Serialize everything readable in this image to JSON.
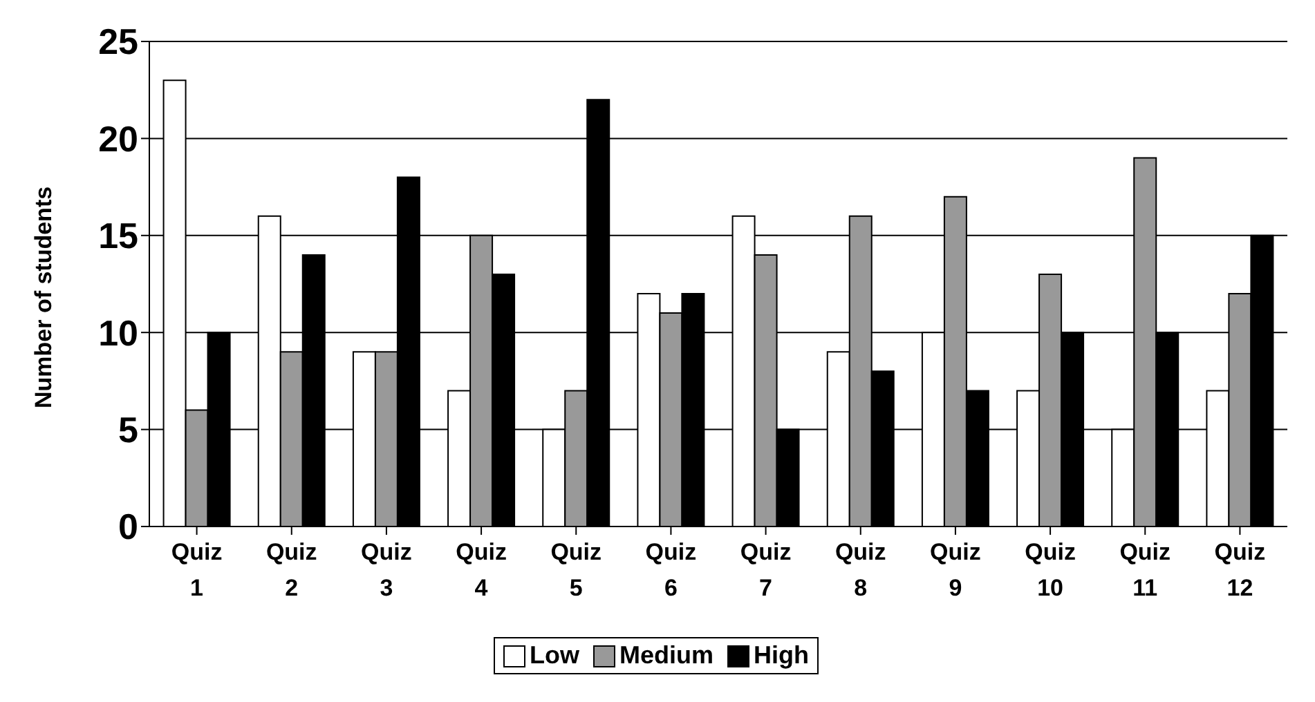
{
  "chart_data": {
    "type": "bar",
    "ylabel": "Number of students",
    "categories": [
      "Quiz 1",
      "Quiz 2",
      "Quiz 3",
      "Quiz 4",
      "Quiz 5",
      "Quiz 6",
      "Quiz 7",
      "Quiz 8",
      "Quiz 9",
      "Quiz 10",
      "Quiz 11",
      "Quiz 12"
    ],
    "series": [
      {
        "name": "Low",
        "color": "#ffffff",
        "values": [
          23,
          16,
          9,
          7,
          5,
          12,
          16,
          9,
          10,
          7,
          5,
          7
        ]
      },
      {
        "name": "Medium",
        "color": "#999999",
        "values": [
          6,
          9,
          9,
          15,
          7,
          11,
          14,
          16,
          17,
          13,
          19,
          12
        ]
      },
      {
        "name": "High",
        "color": "#000000",
        "values": [
          10,
          14,
          18,
          13,
          22,
          12,
          5,
          8,
          7,
          10,
          10,
          15
        ]
      }
    ],
    "ylim": [
      0,
      25
    ],
    "yticks": [
      0,
      5,
      10,
      15,
      20,
      25
    ],
    "grid": "y",
    "legend": "bottom"
  }
}
